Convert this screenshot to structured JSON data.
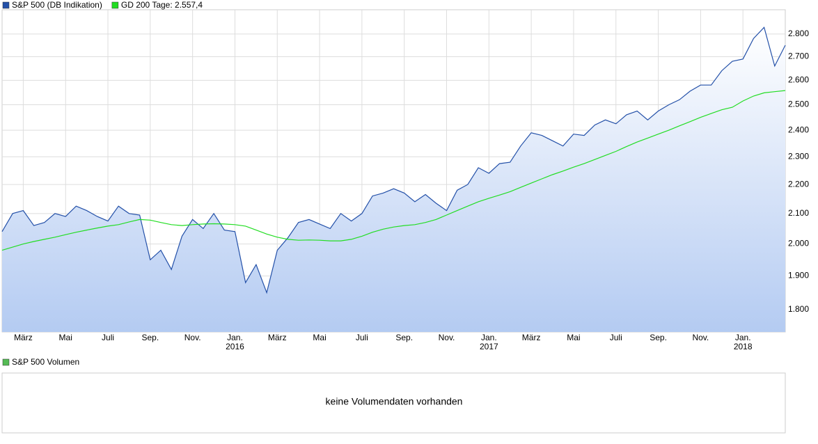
{
  "chart_data": {
    "type": "line",
    "yscale": "log",
    "ylim": [
      1737,
      2911
    ],
    "yticks": [
      {
        "value": 1800,
        "label": "1.800"
      },
      {
        "value": 1900,
        "label": "1.900"
      },
      {
        "value": 2000,
        "label": "2.000"
      },
      {
        "value": 2100,
        "label": "2.100"
      },
      {
        "value": 2200,
        "label": "2.200"
      },
      {
        "value": 2300,
        "label": "2.300"
      },
      {
        "value": 2400,
        "label": "2.400"
      },
      {
        "value": 2500,
        "label": "2.500"
      },
      {
        "value": 2600,
        "label": "2.600"
      },
      {
        "value": 2700,
        "label": "2.700"
      },
      {
        "value": 2800,
        "label": "2.800"
      }
    ],
    "xlim": [
      0,
      74
    ],
    "xticks": [
      {
        "value": 2,
        "label": "März"
      },
      {
        "value": 6,
        "label": "Mai"
      },
      {
        "value": 10,
        "label": "Juli"
      },
      {
        "value": 14,
        "label": "Sep."
      },
      {
        "value": 18,
        "label": "Nov."
      },
      {
        "value": 22,
        "label": "Jan.",
        "year": "2016"
      },
      {
        "value": 26,
        "label": "März"
      },
      {
        "value": 30,
        "label": "Mai"
      },
      {
        "value": 34,
        "label": "Juli"
      },
      {
        "value": 38,
        "label": "Sep."
      },
      {
        "value": 42,
        "label": "Nov."
      },
      {
        "value": 46,
        "label": "Jan.",
        "year": "2017"
      },
      {
        "value": 50,
        "label": "März"
      },
      {
        "value": 54,
        "label": "Mai"
      },
      {
        "value": 58,
        "label": "Juli"
      },
      {
        "value": 62,
        "label": "Sep."
      },
      {
        "value": 66,
        "label": "Nov."
      },
      {
        "value": 70,
        "label": "Jan.",
        "year": "2018"
      }
    ],
    "grid": true,
    "series": [
      {
        "name": "S&P 500 (DB Indikation)",
        "color": "#2350a8",
        "fill": true,
        "values": [
          2040,
          2100,
          2110,
          2060,
          2070,
          2100,
          2090,
          2125,
          2110,
          2090,
          2075,
          2125,
          2100,
          2095,
          1950,
          1980,
          1920,
          2025,
          2080,
          2050,
          2100,
          2045,
          2040,
          1880,
          1935,
          1850,
          1980,
          2020,
          2070,
          2080,
          2065,
          2050,
          2100,
          2075,
          2100,
          2160,
          2170,
          2185,
          2170,
          2140,
          2165,
          2135,
          2110,
          2180,
          2200,
          2260,
          2240,
          2275,
          2280,
          2340,
          2390,
          2380,
          2360,
          2340,
          2385,
          2380,
          2420,
          2440,
          2425,
          2460,
          2475,
          2440,
          2475,
          2500,
          2520,
          2555,
          2580,
          2580,
          2640,
          2680,
          2690,
          2780,
          2830,
          2660,
          2750
        ]
      },
      {
        "name": "GD 200 Tage: 2.557,4",
        "color": "#22dd22",
        "fill": false,
        "values": [
          1980,
          1990,
          2000,
          2008,
          2015,
          2022,
          2030,
          2038,
          2045,
          2052,
          2058,
          2063,
          2072,
          2080,
          2078,
          2070,
          2063,
          2060,
          2063,
          2065,
          2066,
          2065,
          2063,
          2058,
          2045,
          2032,
          2022,
          2015,
          2012,
          2013,
          2012,
          2010,
          2010,
          2015,
          2025,
          2038,
          2048,
          2055,
          2060,
          2063,
          2070,
          2080,
          2095,
          2110,
          2125,
          2140,
          2152,
          2163,
          2175,
          2190,
          2205,
          2220,
          2235,
          2248,
          2262,
          2275,
          2290,
          2305,
          2320,
          2338,
          2355,
          2370,
          2385,
          2400,
          2417,
          2433,
          2450,
          2465,
          2480,
          2490,
          2515,
          2535,
          2548,
          2553,
          2557.4
        ]
      }
    ]
  },
  "volume_panel": {
    "legend": "S&P 500 Volumen",
    "color": "#55bb55",
    "message": "keine Volumendaten vorhanden"
  }
}
